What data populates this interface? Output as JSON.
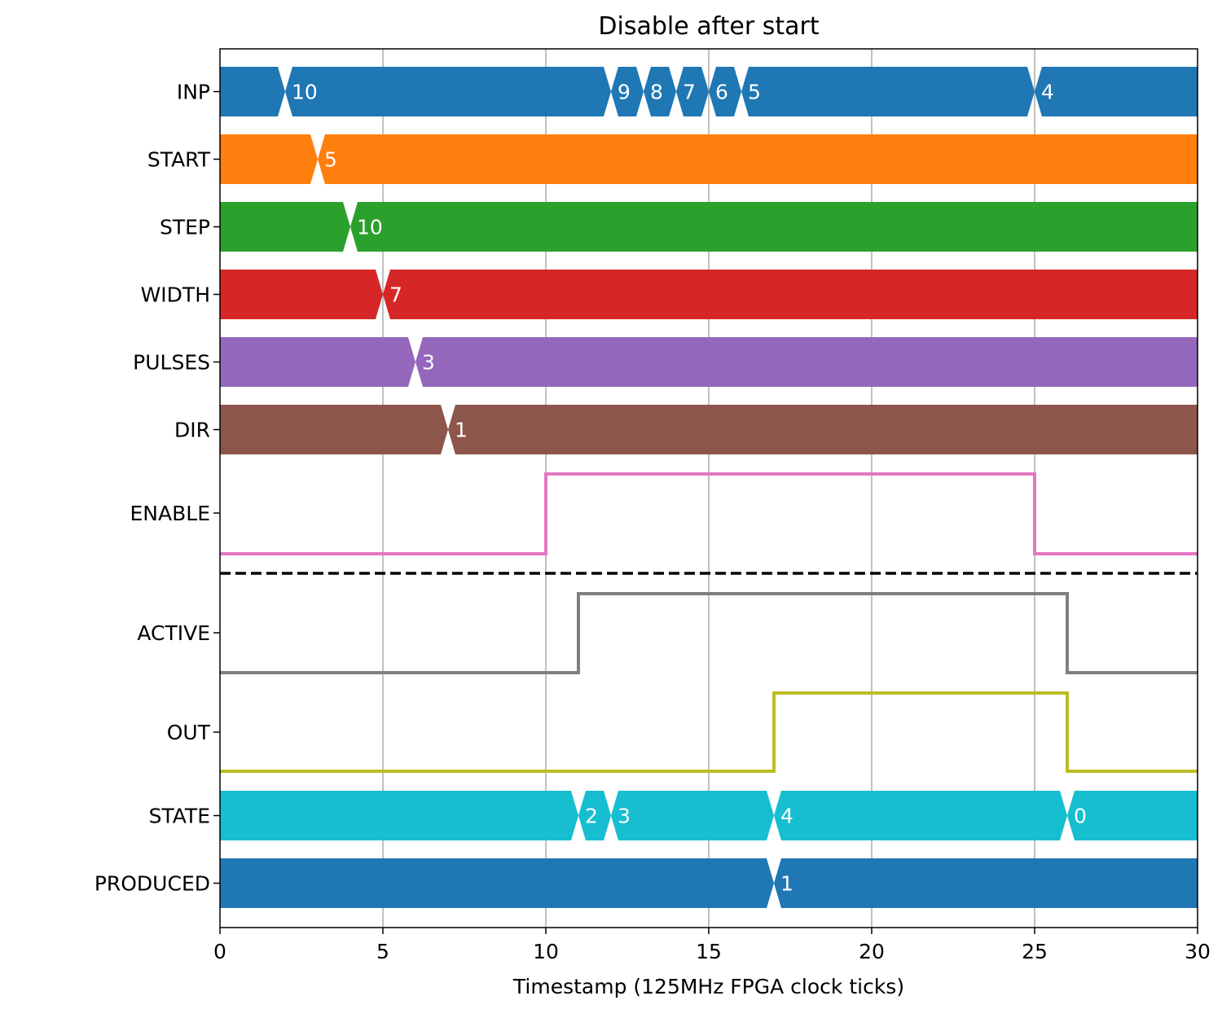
{
  "chart_data": {
    "type": "timing",
    "title": "Disable after start",
    "xlabel": "Timestamp (125MHz FPGA clock ticks)",
    "xlim": [
      0,
      30
    ],
    "xticks": [
      0,
      5,
      10,
      15,
      20,
      25,
      30
    ],
    "grid": "vertical",
    "separator_after": "ENABLE",
    "colors": {
      "INP": "#1f77b4",
      "START": "#ff7f0e",
      "STEP": "#2ca02c",
      "WIDTH": "#d62728",
      "PULSES": "#9467bd",
      "DIR": "#8c564b",
      "ENABLE": "#e377c2",
      "ACTIVE": "#7f7f7f",
      "OUT": "#bcbd22",
      "STATE": "#17becf",
      "PRODUCED": "#1f77b4"
    },
    "signals": [
      {
        "name": "INP",
        "kind": "bus",
        "changes": [
          {
            "t": 2,
            "label": "10"
          },
          {
            "t": 12,
            "label": "9"
          },
          {
            "t": 13,
            "label": "8"
          },
          {
            "t": 14,
            "label": "7"
          },
          {
            "t": 15,
            "label": "6"
          },
          {
            "t": 16,
            "label": "5"
          },
          {
            "t": 25,
            "label": "4"
          }
        ]
      },
      {
        "name": "START",
        "kind": "bus",
        "changes": [
          {
            "t": 3,
            "label": "5"
          }
        ]
      },
      {
        "name": "STEP",
        "kind": "bus",
        "changes": [
          {
            "t": 4,
            "label": "10"
          }
        ]
      },
      {
        "name": "WIDTH",
        "kind": "bus",
        "changes": [
          {
            "t": 5,
            "label": "7"
          }
        ]
      },
      {
        "name": "PULSES",
        "kind": "bus",
        "changes": [
          {
            "t": 6,
            "label": "3"
          }
        ]
      },
      {
        "name": "DIR",
        "kind": "bus",
        "changes": [
          {
            "t": 7,
            "label": "1"
          }
        ]
      },
      {
        "name": "ENABLE",
        "kind": "bit",
        "initial": 0,
        "changes": [
          {
            "t": 10,
            "value": 1
          },
          {
            "t": 25,
            "value": 0
          }
        ]
      },
      {
        "name": "ACTIVE",
        "kind": "bit",
        "initial": 0,
        "changes": [
          {
            "t": 11,
            "value": 1
          },
          {
            "t": 26,
            "value": 0
          }
        ]
      },
      {
        "name": "OUT",
        "kind": "bit",
        "initial": 0,
        "changes": [
          {
            "t": 17,
            "value": 1
          },
          {
            "t": 26,
            "value": 0
          }
        ]
      },
      {
        "name": "STATE",
        "kind": "bus",
        "changes": [
          {
            "t": 0,
            "label": ""
          },
          {
            "t": 11,
            "label": "2"
          },
          {
            "t": 12,
            "label": "3"
          },
          {
            "t": 17,
            "label": "4"
          },
          {
            "t": 26,
            "label": "0"
          }
        ]
      },
      {
        "name": "PRODUCED",
        "kind": "bus",
        "changes": [
          {
            "t": 0,
            "label": ""
          },
          {
            "t": 17,
            "label": "1"
          }
        ]
      }
    ]
  }
}
